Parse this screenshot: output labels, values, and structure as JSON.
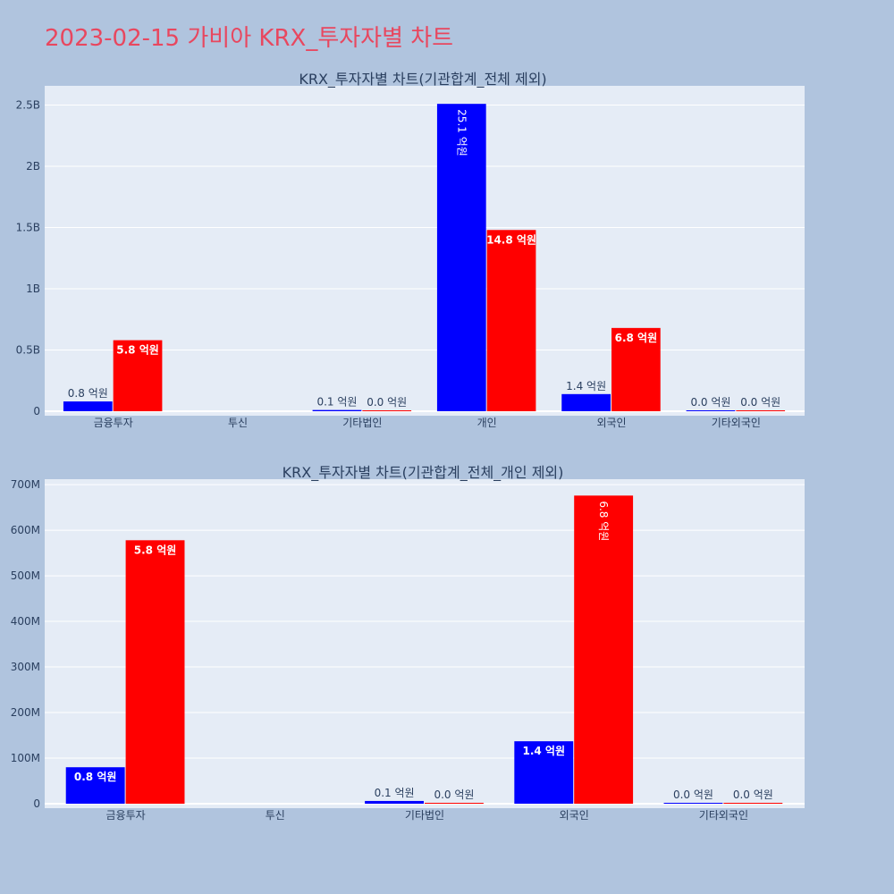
{
  "page_title": "2023-02-15 가비아 KRX_투자자별 차트",
  "colors": {
    "background": "#b0c4de",
    "plot_bg": "#e5ecf6",
    "title": "#e8475f",
    "buy": "#0000ff",
    "sell": "#ff0000",
    "text": "#2a3f5f"
  },
  "chart_data": [
    {
      "type": "bar",
      "title": "KRX_투자자별 차트(기관합계_전체 제외)",
      "categories": [
        "금융투자",
        "투신",
        "기타법인",
        "개인",
        "외국인",
        "기타외국인"
      ],
      "ylim": [
        0,
        2650000000
      ],
      "yticks": [
        0,
        500000000,
        1000000000,
        1500000000,
        2000000000,
        2500000000
      ],
      "ytick_labels": [
        "0",
        "0.5B",
        "1B",
        "1.5B",
        "2B",
        "2.5B"
      ],
      "grid": true,
      "series": [
        {
          "color": "#0000ff",
          "values": [
            80000000,
            null,
            10000000,
            2510000000,
            140000000,
            2000000
          ],
          "labels": [
            "0.8 억원",
            "",
            "0.1 억원",
            "25.1 억원",
            "1.4 억원",
            "0.0 억원"
          ]
        },
        {
          "color": "#ff0000",
          "values": [
            580000000,
            null,
            2000000,
            1480000000,
            680000000,
            2000000
          ],
          "labels": [
            "5.8 억원",
            "",
            "0.0 억원",
            "14.8 억원",
            "6.8 억원",
            "0.0 억원"
          ]
        }
      ]
    },
    {
      "type": "bar",
      "title": "KRX_투자자별 차트(기관합계_전체_개인 제외)",
      "categories": [
        "금융투자",
        "투신",
        "기타법인",
        "외국인",
        "기타외국인"
      ],
      "ylim": [
        0,
        710000000
      ],
      "yticks": [
        0,
        100000000,
        200000000,
        300000000,
        400000000,
        500000000,
        600000000,
        700000000
      ],
      "ytick_labels": [
        "0",
        "100M",
        "200M",
        "300M",
        "400M",
        "500M",
        "600M",
        "700M"
      ],
      "grid": true,
      "series": [
        {
          "color": "#0000ff",
          "values": [
            80000000,
            null,
            6000000,
            137000000,
            1500000
          ],
          "labels": [
            "0.8 억원",
            "",
            "0.1 억원",
            "1.4 억원",
            "0.0 억원"
          ]
        },
        {
          "color": "#ff0000",
          "values": [
            578000000,
            null,
            1500000,
            676000000,
            1500000
          ],
          "labels": [
            "5.8 억원",
            "",
            "0.0 억원",
            "6.8 억원",
            "0.0 억원"
          ]
        }
      ]
    }
  ]
}
